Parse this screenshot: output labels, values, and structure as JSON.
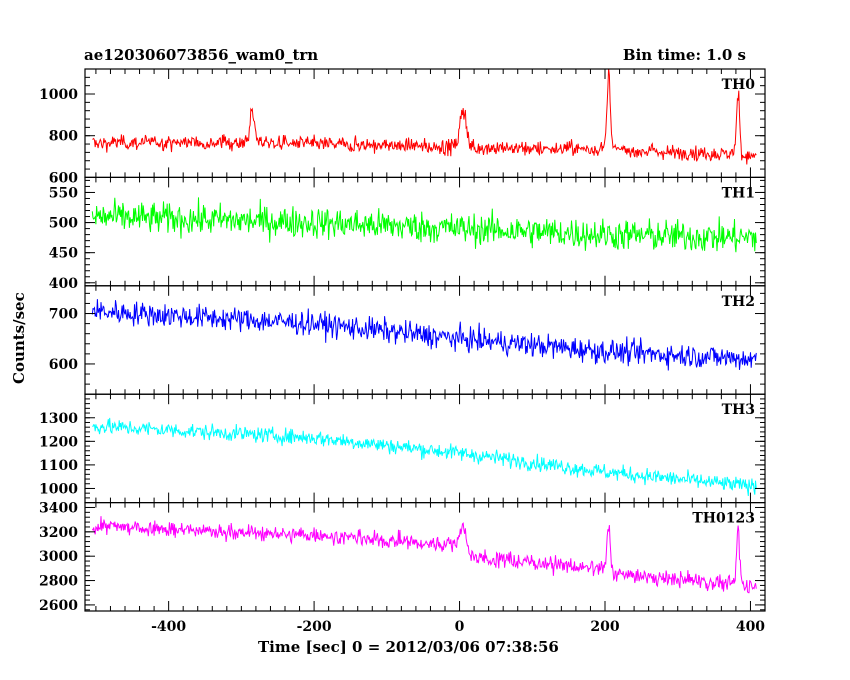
{
  "header": {
    "title_left": "ae120306073856_wam0_trn",
    "title_right": "Bin time: 1.0 s"
  },
  "chart_data": {
    "type": "line",
    "xlabel": "Time [sec] 0 = 2012/03/06 07:38:56",
    "ylabel": "Counts/sec",
    "xlim": [
      -515,
      420
    ],
    "xticks": [
      -400,
      -200,
      0,
      200,
      400
    ],
    "bin_time_s": 1.0,
    "panels": [
      {
        "name": "TH0",
        "color": "#ff0000",
        "ylim": [
          600,
          1120
        ],
        "yticks": [
          600,
          800,
          1000
        ],
        "baseline": [
          [
            -505,
            765
          ],
          [
            -300,
            770
          ],
          [
            0,
            745
          ],
          [
            200,
            735
          ],
          [
            400,
            705
          ]
        ],
        "noise": 30,
        "features": [
          {
            "t": -285,
            "peak": 930,
            "width": 4
          },
          {
            "t": 5,
            "peak": 925,
            "width": 6
          },
          {
            "t": 205,
            "peak": 1120,
            "width": 3
          },
          {
            "t": 383,
            "peak": 1010,
            "width": 3
          }
        ]
      },
      {
        "name": "TH1",
        "color": "#00ff00",
        "ylim": [
          395,
          575
        ],
        "yticks": [
          400,
          450,
          500,
          550
        ],
        "baseline": [
          [
            -505,
            510
          ],
          [
            -200,
            500
          ],
          [
            0,
            490
          ],
          [
            200,
            480
          ],
          [
            400,
            475
          ]
        ],
        "noise": 22,
        "features": []
      },
      {
        "name": "TH2",
        "color": "#0000ff",
        "ylim": [
          540,
          755
        ],
        "yticks": [
          600,
          700
        ],
        "baseline": [
          [
            -505,
            705
          ],
          [
            -200,
            680
          ],
          [
            0,
            650
          ],
          [
            200,
            625
          ],
          [
            400,
            610
          ]
        ],
        "noise": 20,
        "features": []
      },
      {
        "name": "TH3",
        "color": "#00ffff",
        "ylim": [
          940,
          1400
        ],
        "yticks": [
          1000,
          1100,
          1200,
          1300
        ],
        "baseline": [
          [
            -505,
            1265
          ],
          [
            -200,
            1215
          ],
          [
            0,
            1150
          ],
          [
            200,
            1070
          ],
          [
            400,
            1010
          ]
        ],
        "noise": 28,
        "features": []
      },
      {
        "name": "TH0123",
        "color": "#ff00ff",
        "ylim": [
          2550,
          3440
        ],
        "yticks": [
          2600,
          2800,
          3000,
          3200,
          3400
        ],
        "baseline": [
          [
            -505,
            3250
          ],
          [
            -200,
            3170
          ],
          [
            0,
            3090
          ],
          [
            10,
            3000
          ],
          [
            200,
            2900
          ],
          [
            220,
            2850
          ],
          [
            400,
            2760
          ]
        ],
        "noise": 55,
        "features": [
          {
            "t": 5,
            "peak": 3260,
            "width": 6
          },
          {
            "t": 205,
            "peak": 3240,
            "width": 3
          },
          {
            "t": 383,
            "peak": 3200,
            "width": 3
          }
        ]
      }
    ]
  }
}
